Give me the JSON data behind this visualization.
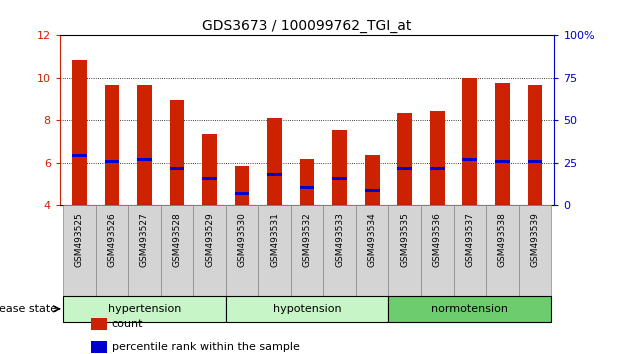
{
  "title": "GDS3673 / 100099762_TGI_at",
  "samples": [
    "GSM493525",
    "GSM493526",
    "GSM493527",
    "GSM493528",
    "GSM493529",
    "GSM493530",
    "GSM493531",
    "GSM493532",
    "GSM493533",
    "GSM493534",
    "GSM493535",
    "GSM493536",
    "GSM493537",
    "GSM493538",
    "GSM493539"
  ],
  "red_values": [
    10.85,
    9.65,
    9.65,
    8.95,
    7.35,
    5.85,
    8.1,
    6.2,
    7.55,
    6.35,
    8.35,
    8.45,
    10.0,
    9.75,
    9.65
  ],
  "blue_values": [
    6.35,
    6.05,
    6.15,
    5.75,
    5.25,
    4.55,
    5.45,
    4.85,
    5.25,
    4.7,
    5.75,
    5.75,
    6.15,
    6.05,
    6.05
  ],
  "ymin": 4,
  "ymax": 12,
  "yticks": [
    4,
    6,
    8,
    10,
    12
  ],
  "y2_labels": [
    "0",
    "25",
    "50",
    "75",
    "100%"
  ],
  "groups": [
    {
      "label": "hypertension",
      "start": 0,
      "end": 4,
      "color": "#c8f5c8"
    },
    {
      "label": "hypotension",
      "start": 5,
      "end": 9,
      "color": "#c8f5c8"
    },
    {
      "label": "normotension",
      "start": 10,
      "end": 14,
      "color": "#6dcc6d"
    }
  ],
  "bar_color": "#cc2200",
  "blue_color": "#0000cc",
  "bar_width": 0.45,
  "tick_box_color": "#d4d4d4",
  "tick_box_edge": "#888888",
  "legend_items": [
    "count",
    "percentile rank within the sample"
  ],
  "legend_colors": [
    "#cc2200",
    "#0000cc"
  ],
  "disease_state_label": "disease state"
}
